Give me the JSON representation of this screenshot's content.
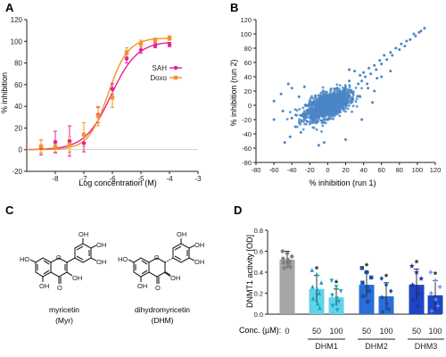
{
  "figure": {
    "panels": {
      "A": {
        "letter": "A",
        "chart_data": {
          "type": "line",
          "title": "",
          "xlabel": "Log concentration (M)",
          "ylabel": "% inhibition",
          "xlim": [
            -9,
            -3
          ],
          "ylim": [
            -20,
            120
          ],
          "xticks": [
            -8,
            -7,
            -6,
            -5,
            -4,
            -3
          ],
          "yticks": [
            -20,
            0,
            20,
            40,
            60,
            80,
            100,
            120
          ],
          "legend_position": "right",
          "series": [
            {
              "name": "SAH",
              "color": "#e4219a",
              "marker": "circle",
              "points": [
                {
                  "x": -8.5,
                  "y": 2,
                  "err": 7
                },
                {
                  "x": -8.0,
                  "y": 7,
                  "err": 10
                },
                {
                  "x": -7.5,
                  "y": 8,
                  "err": 14
                },
                {
                  "x": -7.0,
                  "y": 6,
                  "err": 8
                },
                {
                  "x": -6.5,
                  "y": 32,
                  "err": 7
                },
                {
                  "x": -6.0,
                  "y": 56,
                  "err": 5
                },
                {
                  "x": -5.5,
                  "y": 84,
                  "err": 4
                },
                {
                  "x": -5.0,
                  "y": 92,
                  "err": 3
                },
                {
                  "x": -4.5,
                  "y": 96,
                  "err": 2
                },
                {
                  "x": -4.0,
                  "y": 97,
                  "err": 2
                }
              ],
              "curve": {
                "bottom": 0,
                "top": 100,
                "logIC50": -6.05,
                "hill": 0.95
              }
            },
            {
              "name": "Doxo",
              "color": "#f39324",
              "marker": "square",
              "points": [
                {
                  "x": -8.5,
                  "y": 3,
                  "err": 6
                },
                {
                  "x": -8.0,
                  "y": 3,
                  "err": 5
                },
                {
                  "x": -7.5,
                  "y": 5,
                  "err": 7
                },
                {
                  "x": -7.0,
                  "y": 14,
                  "err": 11
                },
                {
                  "x": -6.5,
                  "y": 31,
                  "err": 9
                },
                {
                  "x": -6.0,
                  "y": 48,
                  "err": 9
                },
                {
                  "x": -5.5,
                  "y": 90,
                  "err": 4
                },
                {
                  "x": -5.0,
                  "y": 98,
                  "err": 3
                },
                {
                  "x": -4.5,
                  "y": 101,
                  "err": 2
                },
                {
                  "x": -4.0,
                  "y": 103,
                  "err": 2
                }
              ],
              "curve": {
                "bottom": 0,
                "top": 103,
                "logIC50": -6.15,
                "hill": 1.25
              }
            }
          ]
        }
      },
      "B": {
        "letter": "B",
        "chart_data": {
          "type": "scatter",
          "title": "",
          "xlabel": "% inhibition (run 1)",
          "ylabel": "% inhibition (run 2)",
          "xlim": [
            -80,
            120
          ],
          "ylim": [
            -80,
            120
          ],
          "xticks": [
            -80,
            -60,
            -40,
            -20,
            0,
            20,
            40,
            60,
            80,
            100,
            120
          ],
          "yticks": [
            -80,
            -60,
            -40,
            -20,
            0,
            20,
            40,
            60,
            80,
            100,
            120
          ],
          "marker_color": "#4a86c5",
          "cloud": {
            "n": 1500,
            "center": [
              0,
              0
            ],
            "sd": [
              12,
              10
            ],
            "corr": 0.55
          },
          "points": [
            [
              108,
              108
            ],
            [
              104,
              104
            ],
            [
              102,
              102
            ],
            [
              98,
              97
            ],
            [
              96,
              100
            ],
            [
              92,
              92
            ],
            [
              88,
              90
            ],
            [
              86,
              83
            ],
            [
              82,
              86
            ],
            [
              80,
              78
            ],
            [
              76,
              80
            ],
            [
              72,
              70
            ],
            [
              70,
              74
            ],
            [
              66,
              64
            ],
            [
              63,
              70
            ],
            [
              60,
              58
            ],
            [
              58,
              63
            ],
            [
              54,
              50
            ],
            [
              52,
              56
            ],
            [
              48,
              44
            ],
            [
              46,
              52
            ],
            [
              42,
              40
            ],
            [
              40,
              46
            ],
            [
              38,
              34
            ],
            [
              36,
              42
            ],
            [
              34,
              30
            ],
            [
              45,
              24
            ],
            [
              52,
              20
            ],
            [
              60,
              40
            ],
            [
              30,
              48
            ],
            [
              24,
              50
            ],
            [
              70,
              48
            ],
            [
              55,
              38
            ],
            [
              -40,
              24
            ],
            [
              -44,
              30
            ],
            [
              -50,
              -8
            ],
            [
              -52,
              16
            ],
            [
              -60,
              -20
            ],
            [
              -36,
              -30
            ],
            [
              -30,
              -38
            ],
            [
              -48,
              -52
            ],
            [
              -42,
              -44
            ],
            [
              -10,
              -56
            ],
            [
              -4,
              -52
            ],
            [
              20,
              -48
            ],
            [
              -40,
              -18
            ],
            [
              28,
              8
            ],
            [
              36,
              12
            ],
            [
              -26,
              26
            ],
            [
              -60,
              6
            ],
            [
              44,
              30
            ],
            [
              38,
              -20
            ],
            [
              50,
              4
            ],
            [
              24,
              34
            ],
            [
              -32,
              12
            ]
          ]
        }
      },
      "C": {
        "letter": "C",
        "molecules": [
          {
            "name": "myricetin",
            "abbr": "(Myr)",
            "atoms": {
              "oh_a": "OH",
              "oh_b": "OH",
              "oh_c": "OH",
              "oh_d": "OH",
              "oh_e": "OH",
              "oh_f": "OH",
              "ho": "HO",
              "ring_o": "O",
              "keto_o": "O"
            }
          },
          {
            "name": "dihydromyricetin",
            "abbr": "(DHM)",
            "atoms": {
              "oh_a": "OH",
              "oh_b": "OH",
              "oh_c": "OH",
              "oh_d": "OH",
              "oh_e": "OH",
              "oh_f": "OH",
              "ho": "HO",
              "ring_o": "O",
              "keto_o": "O"
            }
          }
        ]
      },
      "D": {
        "letter": "D",
        "chart_data": {
          "type": "bar",
          "title": "",
          "xlabel": "",
          "ylabel": "DNMT1 activity [OD]",
          "ylim": [
            0,
            0.8
          ],
          "yticks": [
            0,
            0.2,
            0.4,
            0.6,
            0.8
          ],
          "conc_label": "Conc. (µM):",
          "categories": [
            "0",
            "50",
            "100",
            "50",
            "100",
            "50",
            "100"
          ],
          "groups": [
            {
              "label": "",
              "bars": [
                0
              ]
            },
            {
              "label": "DHM1",
              "bars": [
                1,
                2
              ]
            },
            {
              "label": "DHM2",
              "bars": [
                3,
                4
              ]
            },
            {
              "label": "DHM3",
              "bars": [
                5,
                6
              ]
            }
          ],
          "bars": [
            {
              "value": 0.52,
              "sd": 0.08,
              "color": "#a6a6a6",
              "dot_color": "#7f7f7f",
              "marker": "circle",
              "star": false,
              "points": [
                0.6,
                0.58,
                0.55,
                0.53,
                0.52,
                0.5,
                0.49,
                0.47,
                0.45,
                0.44
              ]
            },
            {
              "value": 0.24,
              "sd": 0.13,
              "color": "#5ed3e9",
              "dot_color": "#1aa3be",
              "marker": "triangle",
              "star": true,
              "points": [
                0.42,
                0.38,
                0.3,
                0.26,
                0.24,
                0.2,
                0.15,
                0.1,
                0.06
              ]
            },
            {
              "value": 0.16,
              "sd": 0.08,
              "color": "#5ed3e9",
              "dot_color": "#1aa3be",
              "marker": "triangle-down",
              "star": true,
              "points": [
                0.32,
                0.26,
                0.22,
                0.18,
                0.15,
                0.12,
                0.08,
                0.04
              ]
            },
            {
              "value": 0.28,
              "sd": 0.12,
              "color": "#2a6fd6",
              "dot_color": "#1a4fa8",
              "marker": "square",
              "star": true,
              "points": [
                0.44,
                0.4,
                0.35,
                0.3,
                0.26,
                0.22,
                0.17,
                0.12
              ]
            },
            {
              "value": 0.17,
              "sd": 0.13,
              "color": "#2a6fd6",
              "dot_color": "#1a4fa8",
              "marker": "diamond",
              "star": true,
              "points": [
                0.34,
                0.28,
                0.22,
                0.16,
                0.1,
                0.05,
                0.02
              ]
            },
            {
              "value": 0.28,
              "sd": 0.15,
              "color": "#1f45c4",
              "dot_color": "#1b35a6",
              "marker": "star",
              "star": true,
              "points": [
                0.46,
                0.4,
                0.34,
                0.28,
                0.24,
                0.2,
                0.14,
                0.08
              ]
            },
            {
              "value": 0.18,
              "sd": 0.14,
              "color": "#1f45c4",
              "dot_color": "#6a8be8",
              "marker": "plus",
              "star": true,
              "points": [
                0.4,
                0.32,
                0.26,
                0.2,
                0.14,
                0.08,
                0.03
              ]
            }
          ]
        }
      }
    }
  }
}
